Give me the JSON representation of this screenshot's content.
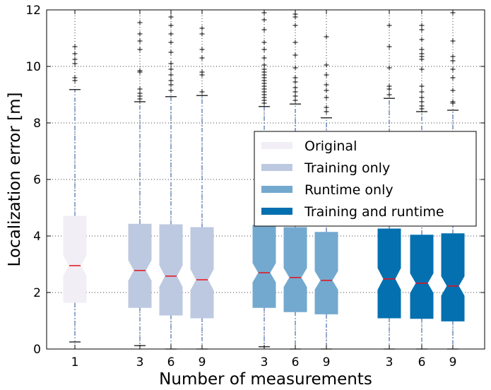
{
  "chart_data": {
    "type": "boxplot",
    "xlabel": "Number of measurements",
    "ylabel": "Localization error [m]",
    "ylim": [
      0,
      12
    ],
    "yticks": [
      0,
      2,
      4,
      6,
      8,
      10,
      12
    ],
    "grid": "dotted",
    "legend_placement": "center-right",
    "series": [
      {
        "name": "Original",
        "color": "#f1eef6",
        "boxes": [
          {
            "x_label": "1",
            "whisker_low": 0.25,
            "q1": 1.65,
            "median": 2.95,
            "q3": 4.7,
            "whisker_high": 9.18,
            "outliers": [
              9.5,
              9.6,
              10.1,
              10.25,
              10.45,
              10.7
            ]
          }
        ]
      },
      {
        "name": "Training only",
        "color": "#bdc9e1",
        "boxes": [
          {
            "x_label": "3",
            "whisker_low": 0.12,
            "q1": 1.47,
            "median": 2.78,
            "q3": 4.42,
            "whisker_high": 8.75,
            "outliers": [
              8.85,
              8.95,
              9.05,
              9.2,
              9.8,
              9.85,
              10.6,
              10.9,
              11.15,
              11.55
            ]
          },
          {
            "x_label": "6",
            "whisker_low": 0.0,
            "q1": 1.2,
            "median": 2.58,
            "q3": 4.4,
            "whisker_high": 8.93,
            "outliers": [
              9.15,
              9.35,
              9.5,
              9.7,
              9.9,
              10.1,
              10.5,
              10.85,
              11.15,
              11.45,
              11.75
            ]
          },
          {
            "x_label": "9",
            "whisker_low": 0.0,
            "q1": 1.1,
            "median": 2.45,
            "q3": 4.3,
            "whisker_high": 8.97,
            "outliers": [
              9.1,
              9.7,
              9.8,
              10.3,
              10.6,
              11.15,
              11.35
            ]
          }
        ]
      },
      {
        "name": "Runtime only",
        "color": "#74a9cf",
        "boxes": [
          {
            "x_label": "3",
            "whisker_low": 0.08,
            "q1": 1.47,
            "median": 2.7,
            "q3": 4.38,
            "whisker_high": 8.58,
            "outliers": [
              8.7,
              8.8,
              8.9,
              9.0,
              9.1,
              9.2,
              9.3,
              9.4,
              9.5,
              9.6,
              9.7,
              9.8,
              9.9,
              10.05,
              10.3,
              10.6,
              10.85,
              11.3,
              11.65,
              11.9
            ]
          },
          {
            "x_label": "6",
            "whisker_low": 0.0,
            "q1": 1.32,
            "median": 2.53,
            "q3": 4.3,
            "whisker_high": 8.67,
            "outliers": [
              8.8,
              8.95,
              9.1,
              9.25,
              9.45,
              9.6,
              9.95,
              10.4,
              10.85,
              11.45,
              11.75,
              11.85
            ]
          },
          {
            "x_label": "9",
            "whisker_low": 0.0,
            "q1": 1.24,
            "median": 2.43,
            "q3": 4.13,
            "whisker_high": 8.18,
            "outliers": [
              8.4,
              8.55,
              8.9,
              9.15,
              9.35,
              9.7,
              10.05,
              11.05
            ]
          }
        ]
      },
      {
        "name": "Training and runtime",
        "color": "#0570b0",
        "boxes": [
          {
            "x_label": "3",
            "whisker_low": 0.0,
            "q1": 1.1,
            "median": 2.48,
            "q3": 4.25,
            "whisker_high": 8.87,
            "outliers": [
              9.0,
              9.2,
              9.3,
              9.95,
              10.7,
              11.45
            ]
          },
          {
            "x_label": "6",
            "whisker_low": 0.0,
            "q1": 1.08,
            "median": 2.33,
            "q3": 4.03,
            "whisker_high": 8.4,
            "outliers": [
              8.5,
              8.6,
              8.75,
              8.9,
              9.1,
              9.3,
              9.9,
              10.25,
              10.35,
              10.45,
              10.6,
              10.95,
              11.3,
              11.45
            ]
          },
          {
            "x_label": "9",
            "whisker_low": 0.0,
            "q1": 0.99,
            "median": 2.23,
            "q3": 4.08,
            "whisker_high": 8.45,
            "outliers": [
              8.7,
              8.75,
              9.15,
              9.6,
              9.9,
              10.2,
              10.35,
              10.9,
              11.9
            ]
          }
        ]
      }
    ]
  }
}
